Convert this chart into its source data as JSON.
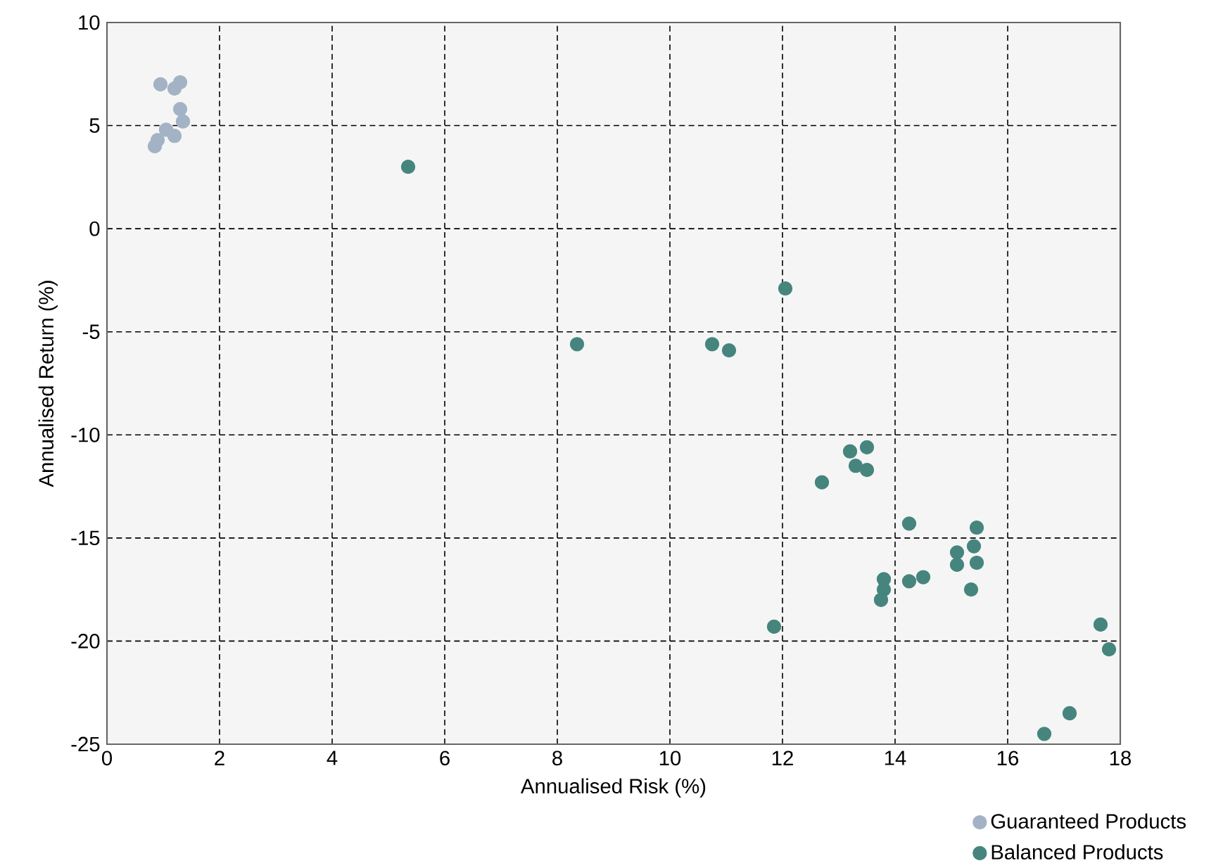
{
  "chart_data": {
    "type": "scatter",
    "xlabel": "Annualised Risk (%)",
    "ylabel": "Annualised Return (%)",
    "xlim": [
      0,
      18
    ],
    "xticks": [
      0,
      2,
      4,
      6,
      8,
      10,
      12,
      14,
      16,
      18
    ],
    "ylim": [
      -25,
      10
    ],
    "yticks": [
      -25,
      -20,
      -15,
      -10,
      -5,
      0,
      5,
      10
    ],
    "grid": true,
    "legend": "bottom right",
    "series": [
      {
        "name": "Guaranteed Products",
        "color": "#a3b3c5",
        "x": [
          0.95,
          1.2,
          1.3,
          1.3,
          1.35,
          1.05,
          1.2,
          0.9,
          0.85
        ],
        "values": [
          7.0,
          6.8,
          7.1,
          5.8,
          5.2,
          4.8,
          4.5,
          4.3,
          4.0
        ]
      },
      {
        "name": "Balanced Products",
        "color": "#46857e",
        "x": [
          5.35,
          8.35,
          10.75,
          11.05,
          12.05,
          11.85,
          12.7,
          13.2,
          13.5,
          13.3,
          13.5,
          14.25,
          15.45,
          13.8,
          13.8,
          13.75,
          14.25,
          14.5,
          15.1,
          15.1,
          15.4,
          15.45,
          15.35,
          17.65,
          17.8,
          17.1,
          16.65
        ],
        "values": [
          3.0,
          -5.6,
          -5.6,
          -5.9,
          -2.9,
          -19.3,
          -12.3,
          -10.8,
          -10.6,
          -11.5,
          -11.7,
          -14.3,
          -14.5,
          -17.0,
          -17.5,
          -18.0,
          -17.1,
          -16.9,
          -15.7,
          -16.3,
          -15.4,
          -16.2,
          -17.5,
          -19.2,
          -20.4,
          -23.5,
          -24.5
        ]
      }
    ]
  }
}
